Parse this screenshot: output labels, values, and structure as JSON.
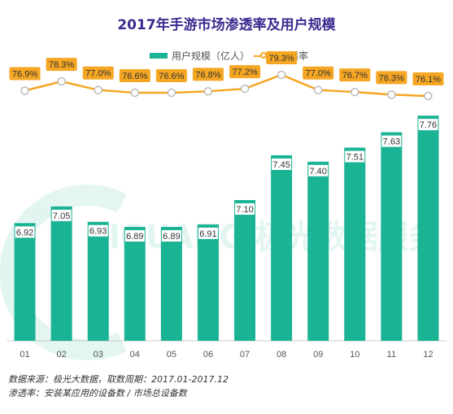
{
  "colors": {
    "bar": "#1ab394",
    "line": "#f5a623",
    "title": "#3d2a8f"
  },
  "title": "2017年手游市场渗透率及用户规模",
  "legend": {
    "bar_label": "用户规模（亿人）",
    "line_label": "渗透率"
  },
  "watermark": "JIGUANG 极光数据服务",
  "chart_data": {
    "type": "bar",
    "title": "2017年手游市场渗透率及用户规模",
    "categories": [
      "01",
      "02",
      "03",
      "04",
      "05",
      "06",
      "07",
      "08",
      "09",
      "10",
      "11",
      "12"
    ],
    "series": [
      {
        "name": "用户规模（亿人）",
        "type": "bar",
        "values": [
          6.92,
          7.05,
          6.93,
          6.89,
          6.89,
          6.91,
          7.1,
          7.45,
          7.4,
          7.51,
          7.63,
          7.76
        ]
      },
      {
        "name": "渗透率",
        "type": "line",
        "values": [
          76.9,
          78.3,
          77.0,
          76.6,
          76.6,
          76.8,
          77.2,
          79.3,
          77.0,
          76.7,
          76.3,
          76.1
        ],
        "labels": [
          "76.9%",
          "78.3%",
          "77.0%",
          "76.6%",
          "76.6%",
          "76.8%",
          "77.2%",
          "79.3%",
          "77.0%",
          "76.7%",
          "76.3%",
          "76.1%"
        ]
      }
    ],
    "bar_labels": [
      "6.92",
      "7.05",
      "6.93",
      "6.89",
      "6.89",
      "6.91",
      "7.10",
      "7.45",
      "7.40",
      "7.51",
      "7.63",
      "7.76"
    ],
    "bar_ylim": [
      6.0,
      7.85
    ],
    "line_ylim": [
      60.0,
      82.0
    ],
    "grid": false,
    "legend_position": "top-center"
  },
  "footnotes": {
    "source": "数据来源：极光大数据，取数周期：2017.01-2017.12",
    "definition": "渗透率：安装某应用的设备数 / 市场总设备数"
  }
}
